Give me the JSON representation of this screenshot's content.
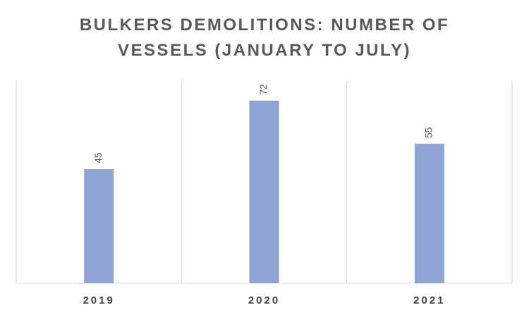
{
  "chart_data": {
    "type": "bar",
    "title": "BULKERS DEMOLITIONS: NUMBER OF VESSELS (JANUARY TO JULY)",
    "categories": [
      "2019",
      "2020",
      "2021"
    ],
    "values": [
      45,
      72,
      55
    ],
    "color": "#8fa3d4",
    "ylim": [
      0,
      80
    ],
    "data_labels": true
  }
}
